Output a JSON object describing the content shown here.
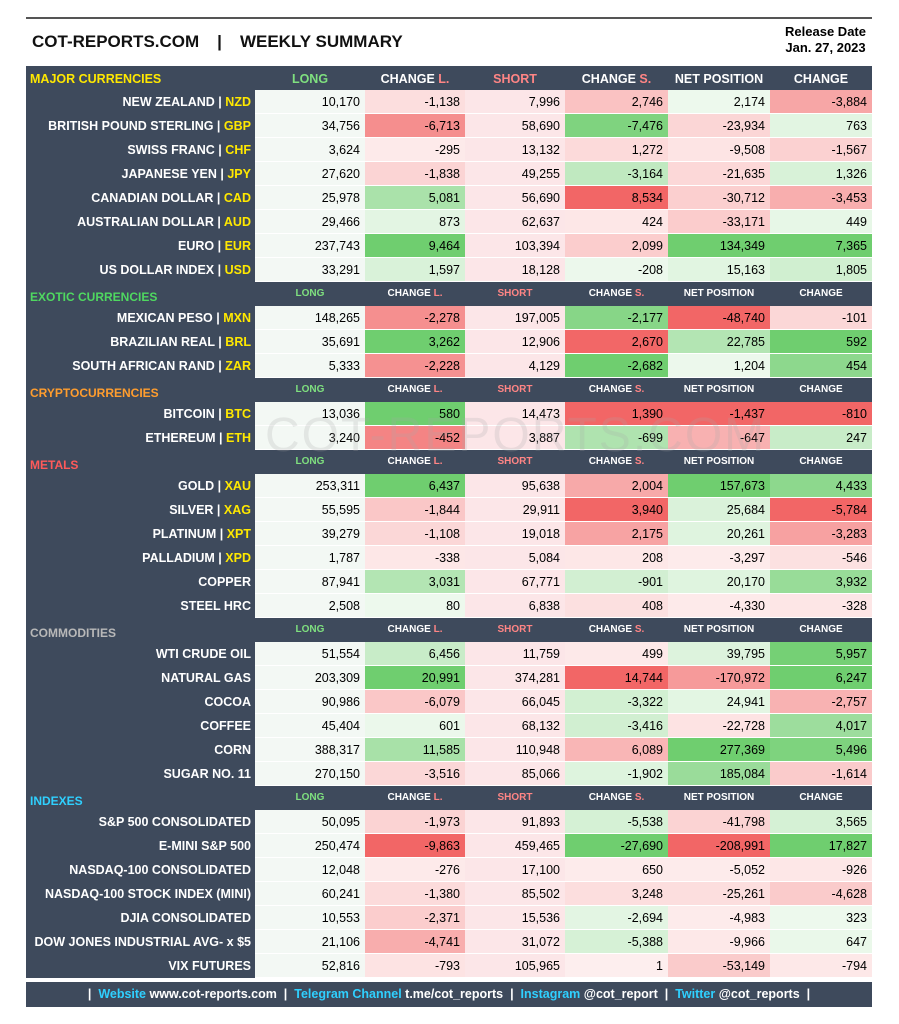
{
  "header": {
    "site": "COT-REPORTS.COM",
    "separator": "|",
    "title": "WEEKLY SUMMARY",
    "release_label": "Release Date",
    "release_date": "Jan. 27, 2023"
  },
  "watermark": "COT-REPORTS.COM",
  "sections": [
    {
      "title": "MAJOR CURRENCIES",
      "columns": [
        {
          "text": "LONG"
        },
        {
          "text": "CHANGE",
          "suffix": "L."
        },
        {
          "text": "SHORT"
        },
        {
          "text": "CHANGE",
          "suffix": "S."
        },
        {
          "text": "NET POSITION"
        },
        {
          "text": "CHANGE"
        }
      ],
      "rows": [
        {
          "name": "NEW ZEALAND |",
          "code": "NZD",
          "values": [
            "10,170",
            "-1,138",
            "7,996",
            "2,746",
            "2,174",
            "-3,884"
          ]
        },
        {
          "name": "BRITISH POUND STERLING |",
          "code": "GBP",
          "values": [
            "34,756",
            "-6,713",
            "58,690",
            "-7,476",
            "-23,934",
            "763"
          ]
        },
        {
          "name": "SWISS FRANC |",
          "code": "CHF",
          "values": [
            "3,624",
            "-295",
            "13,132",
            "1,272",
            "-9,508",
            "-1,567"
          ]
        },
        {
          "name": "JAPANESE YEN |",
          "code": "JPY",
          "values": [
            "27,620",
            "-1,838",
            "49,255",
            "-3,164",
            "-21,635",
            "1,326"
          ]
        },
        {
          "name": "CANADIAN DOLLAR |",
          "code": "CAD",
          "values": [
            "25,978",
            "5,081",
            "56,690",
            "8,534",
            "-30,712",
            "-3,453"
          ]
        },
        {
          "name": "AUSTRALIAN DOLLAR |",
          "code": "AUD",
          "values": [
            "29,466",
            "873",
            "62,637",
            "424",
            "-33,171",
            "449"
          ]
        },
        {
          "name": "EURO |",
          "code": "EUR",
          "values": [
            "237,743",
            "9,464",
            "103,394",
            "2,099",
            "134,349",
            "7,365"
          ]
        },
        {
          "name": "US DOLLAR INDEX |",
          "code": "USD",
          "values": [
            "33,291",
            "1,597",
            "18,128",
            "-208",
            "15,163",
            "1,805"
          ]
        }
      ]
    },
    {
      "title": "EXOTIC CURRENCIES",
      "columns": [
        {
          "text": "LONG"
        },
        {
          "text": "CHANGE",
          "suffix": "L."
        },
        {
          "text": "SHORT"
        },
        {
          "text": "CHANGE",
          "suffix": "S."
        },
        {
          "text": "NET POSITION"
        },
        {
          "text": "CHANGE"
        }
      ],
      "rows": [
        {
          "name": "MEXICAN PESO |",
          "code": "MXN",
          "values": [
            "148,265",
            "-2,278",
            "197,005",
            "-2,177",
            "-48,740",
            "-101"
          ]
        },
        {
          "name": "BRAZILIAN REAL |",
          "code": "BRL",
          "values": [
            "35,691",
            "3,262",
            "12,906",
            "2,670",
            "22,785",
            "592"
          ]
        },
        {
          "name": "SOUTH AFRICAN RAND |",
          "code": "ZAR",
          "values": [
            "5,333",
            "-2,228",
            "4,129",
            "-2,682",
            "1,204",
            "454"
          ]
        }
      ]
    },
    {
      "title": "CRYPTOCURRENCIES",
      "columns": [
        {
          "text": "LONG"
        },
        {
          "text": "CHANGE",
          "suffix": "L."
        },
        {
          "text": "SHORT"
        },
        {
          "text": "CHANGE",
          "suffix": "S."
        },
        {
          "text": "NET POSITION"
        },
        {
          "text": "CHANGE"
        }
      ],
      "rows": [
        {
          "name": "BITCOIN |",
          "code": "BTC",
          "values": [
            "13,036",
            "580",
            "14,473",
            "1,390",
            "-1,437",
            "-810"
          ]
        },
        {
          "name": "ETHEREUM |",
          "code": "ETH",
          "values": [
            "3,240",
            "-452",
            "3,887",
            "-699",
            "-647",
            "247"
          ]
        }
      ]
    },
    {
      "title": "METALS",
      "columns": [
        {
          "text": "LONG"
        },
        {
          "text": "CHANGE",
          "suffix": "L."
        },
        {
          "text": "SHORT"
        },
        {
          "text": "CHANGE",
          "suffix": "S."
        },
        {
          "text": "NET POSITION"
        },
        {
          "text": "CHANGE"
        }
      ],
      "rows": [
        {
          "name": "GOLD |",
          "code": "XAU",
          "values": [
            "253,311",
            "6,437",
            "95,638",
            "2,004",
            "157,673",
            "4,433"
          ]
        },
        {
          "name": "SILVER |",
          "code": "XAG",
          "values": [
            "55,595",
            "-1,844",
            "29,911",
            "3,940",
            "25,684",
            "-5,784"
          ]
        },
        {
          "name": "PLATINUM |",
          "code": "XPT",
          "values": [
            "39,279",
            "-1,108",
            "19,018",
            "2,175",
            "20,261",
            "-3,283"
          ]
        },
        {
          "name": "PALLADIUM |",
          "code": "XPD",
          "values": [
            "1,787",
            "-338",
            "5,084",
            "208",
            "-3,297",
            "-546"
          ]
        },
        {
          "name": "COPPER",
          "values": [
            "87,941",
            "3,031",
            "67,771",
            "-901",
            "20,170",
            "3,932"
          ]
        },
        {
          "name": "STEEL HRC",
          "values": [
            "2,508",
            "80",
            "6,838",
            "408",
            "-4,330",
            "-328"
          ]
        }
      ]
    },
    {
      "title": "COMMODITIES",
      "columns": [
        {
          "text": "LONG"
        },
        {
          "text": "CHANGE",
          "suffix": "L."
        },
        {
          "text": "SHORT"
        },
        {
          "text": "CHANGE",
          "suffix": "S."
        },
        {
          "text": "NET POSITION"
        },
        {
          "text": "CHANGE"
        }
      ],
      "rows": [
        {
          "name": "WTI CRUDE OIL",
          "values": [
            "51,554",
            "6,456",
            "11,759",
            "499",
            "39,795",
            "5,957"
          ]
        },
        {
          "name": "NATURAL GAS",
          "values": [
            "203,309",
            "20,991",
            "374,281",
            "14,744",
            "-170,972",
            "6,247"
          ]
        },
        {
          "name": "COCOA",
          "values": [
            "90,986",
            "-6,079",
            "66,045",
            "-3,322",
            "24,941",
            "-2,757"
          ]
        },
        {
          "name": "COFFEE",
          "values": [
            "45,404",
            "601",
            "68,132",
            "-3,416",
            "-22,728",
            "4,017"
          ]
        },
        {
          "name": "CORN",
          "values": [
            "388,317",
            "11,585",
            "110,948",
            "6,089",
            "277,369",
            "5,496"
          ]
        },
        {
          "name": "SUGAR NO. 11",
          "values": [
            "270,150",
            "-3,516",
            "85,066",
            "-1,902",
            "185,084",
            "-1,614"
          ]
        }
      ]
    },
    {
      "title": "INDEXES",
      "columns": [
        {
          "text": "LONG"
        },
        {
          "text": "CHANGE",
          "suffix": "L."
        },
        {
          "text": "SHORT"
        },
        {
          "text": "CHANGE",
          "suffix": "S."
        },
        {
          "text": "NET POSITION"
        },
        {
          "text": "CHANGE"
        }
      ],
      "rows": [
        {
          "name": "S&P 500 CONSOLIDATED",
          "values": [
            "50,095",
            "-1,973",
            "91,893",
            "-5,538",
            "-41,798",
            "3,565"
          ]
        },
        {
          "name": "E-MINI S&P 500",
          "values": [
            "250,474",
            "-9,863",
            "459,465",
            "-27,690",
            "-208,991",
            "17,827"
          ]
        },
        {
          "name": "NASDAQ-100 CONSOLIDATED",
          "values": [
            "12,048",
            "-276",
            "17,100",
            "650",
            "-5,052",
            "-926"
          ]
        },
        {
          "name": "NASDAQ-100 STOCK INDEX (MINI)",
          "values": [
            "60,241",
            "-1,380",
            "85,502",
            "3,248",
            "-25,261",
            "-4,628"
          ]
        },
        {
          "name": "DJIA CONSOLIDATED",
          "values": [
            "10,553",
            "-2,371",
            "15,536",
            "-2,694",
            "-4,983",
            "323"
          ]
        },
        {
          "name": "DOW JONES INDUSTRIAL AVG- x $5",
          "values": [
            "21,106",
            "-4,741",
            "31,072",
            "-5,388",
            "-9,966",
            "647"
          ]
        },
        {
          "name": "VIX FUTURES",
          "values": [
            "52,816",
            "-793",
            "105,965",
            "1",
            "-53,149",
            "-794"
          ]
        }
      ]
    }
  ],
  "footer": {
    "separator": "|",
    "items": [
      {
        "label": "Website",
        "value": "www.cot-reports.com"
      },
      {
        "label": "Telegram Channel",
        "value": "t.me/cot_reports"
      },
      {
        "label": "Instagram",
        "value": "@cot_report"
      },
      {
        "label": "Twitter",
        "value": "@cot_reports"
      }
    ]
  }
}
